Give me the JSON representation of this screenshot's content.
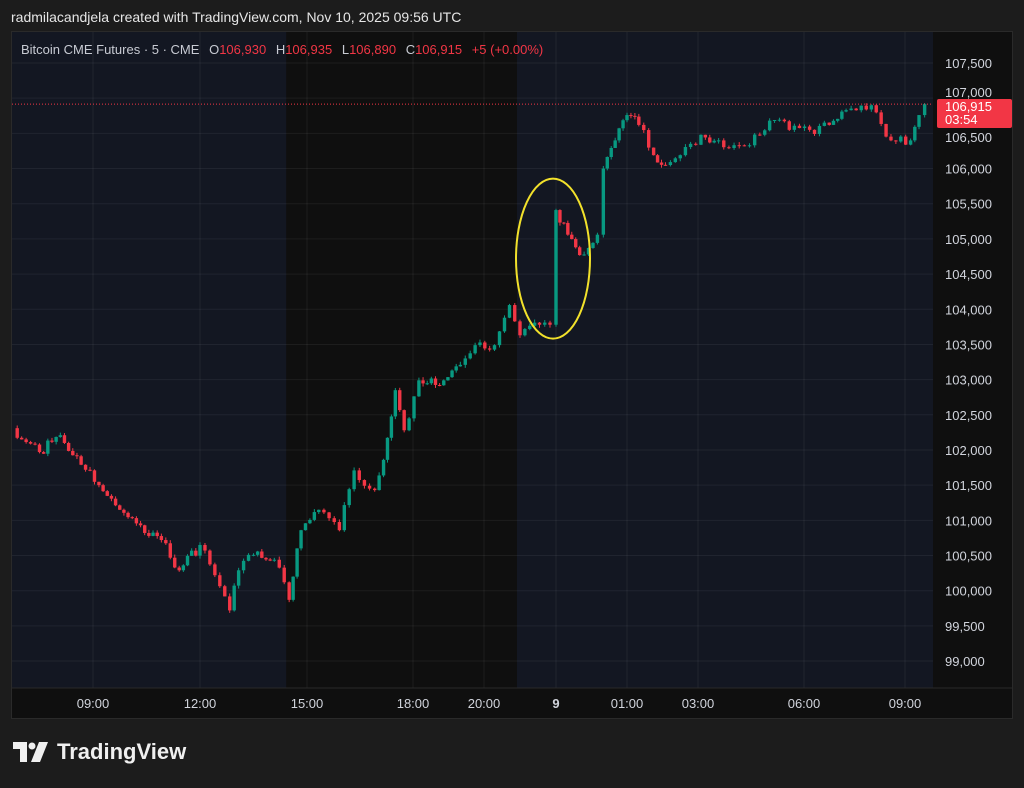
{
  "credit": "radmilacandjela created with TradingView.com, Nov 10, 2025 09:56 UTC",
  "legend": {
    "symbol": "Bitcoin CME Futures · 5 · CME",
    "o_key": "O",
    "o": "106,930",
    "h_key": "H",
    "h": "106,935",
    "l_key": "L",
    "l": "106,890",
    "c_key": "C",
    "c": "106,915",
    "change": "+5 (+0.00%)"
  },
  "last_price": {
    "price": "106,915",
    "countdown": "03:54",
    "value": 106915
  },
  "brand": "TradingView",
  "colors": {
    "up": "#089981",
    "down": "#f23645",
    "session_bg": "#131722",
    "offsession_bg": "#0f0f0f",
    "annotation": "#f2e12b",
    "last_price": "#f23645"
  },
  "chart_data": {
    "type": "candlestick",
    "ylim": [
      98700,
      107950
    ],
    "y_ticks": [
      107500,
      107000,
      106500,
      106000,
      105500,
      105000,
      104500,
      104000,
      103500,
      103000,
      102500,
      102000,
      101500,
      101000,
      100500,
      100000,
      99500,
      99000
    ],
    "y_tick_labels": [
      "107,500",
      "107,000",
      "106,500",
      "106,000",
      "105,500",
      "105,000",
      "104,500",
      "104,000",
      "103,500",
      "103,000",
      "102,500",
      "102,000",
      "101,500",
      "101,000",
      "100,500",
      "100,000",
      "99,500",
      "99,000"
    ],
    "x_ticks": [
      {
        "t": "8 09:00",
        "label": "09:00"
      },
      {
        "t": "8 12:00",
        "label": "12:00"
      },
      {
        "t": "8 15:00",
        "label": "15:00"
      },
      {
        "t": "8 18:00",
        "label": "18:00"
      },
      {
        "t": "8 20:00",
        "label": "20:00"
      },
      {
        "t": "9 00:00",
        "label": "9",
        "bold": true
      },
      {
        "t": "9 01:00",
        "label": "01:00"
      },
      {
        "t": "9 03:00",
        "label": "03:00"
      },
      {
        "t": "9 06:00",
        "label": "06:00"
      },
      {
        "t": "9 09:00",
        "label": "09:00"
      }
    ],
    "offsession": [
      "8 14:25",
      "8 21:50"
    ],
    "grid": true,
    "series_close": [
      [
        "8 06:45",
        102310
      ],
      [
        "8 07:30",
        101970
      ],
      [
        "8 08:05",
        102210
      ],
      [
        "8 08:40",
        101790
      ],
      [
        "8 09:10",
        101500
      ],
      [
        "8 09:45",
        101150
      ],
      [
        "8 10:20",
        100930
      ],
      [
        "8 10:55",
        100720
      ],
      [
        "8 11:25",
        100290
      ],
      [
        "8 12:00",
        100650
      ],
      [
        "8 12:25",
        100220
      ],
      [
        "8 12:50",
        99720
      ],
      [
        "8 13:05",
        100290
      ],
      [
        "8 13:30",
        100510
      ],
      [
        "8 14:05",
        100440
      ],
      [
        "8 14:30",
        99870
      ],
      [
        "8 14:50",
        100860
      ],
      [
        "8 15:20",
        101150
      ],
      [
        "8 15:55",
        100860
      ],
      [
        "8 16:20",
        101710
      ],
      [
        "8 16:55",
        101430
      ],
      [
        "8 17:10",
        101860
      ],
      [
        "8 17:30",
        102850
      ],
      [
        "8 17:45",
        102280
      ],
      [
        "8 18:10",
        102990
      ],
      [
        "8 18:45",
        102920
      ],
      [
        "8 19:20",
        103210
      ],
      [
        "8 19:45",
        103490
      ],
      [
        "8 20:35",
        103490
      ],
      [
        "8 21:25",
        104060
      ],
      [
        "8 22:00",
        103630
      ],
      [
        "8 23:05",
        103780
      ],
      [
        "8 23:40",
        103780
      ],
      [
        "9 00:00",
        105410
      ],
      [
        "9 00:10",
        105060
      ],
      [
        "9 00:20",
        104770
      ],
      [
        "9 00:35",
        105060
      ],
      [
        "9 00:40",
        106000
      ],
      [
        "9 00:50",
        106400
      ],
      [
        "9 01:00",
        106760
      ],
      [
        "9 01:20",
        106620
      ],
      [
        "9 01:45",
        106190
      ],
      [
        "9 02:05",
        106050
      ],
      [
        "9 02:30",
        106190
      ],
      [
        "9 03:05",
        106480
      ],
      [
        "9 03:35",
        106400
      ],
      [
        "9 04:10",
        106330
      ],
      [
        "9 04:45",
        106480
      ],
      [
        "9 05:10",
        106690
      ],
      [
        "9 05:35",
        106550
      ],
      [
        "9 06:10",
        106550
      ],
      [
        "9 06:45",
        106620
      ],
      [
        "9 07:15",
        106830
      ],
      [
        "9 08:00",
        106900
      ],
      [
        "9 08:35",
        106400
      ],
      [
        "9 09:10",
        106400
      ],
      [
        "9 09:25",
        106760
      ],
      [
        "9 09:35",
        106915
      ]
    ],
    "annotation": {
      "type": "ellipse",
      "center_time": "9 00:00",
      "center_price": 104720
    }
  }
}
